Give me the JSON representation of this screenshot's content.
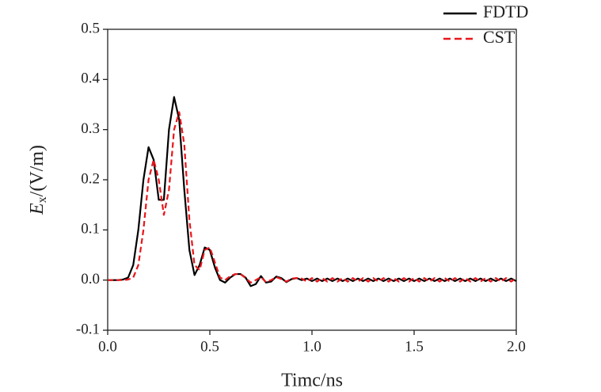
{
  "chart_data": {
    "type": "line",
    "xlabel": "Timc/ns",
    "ylabel": {
      "symbol": "E",
      "subscript": "x",
      "unit": "/(V/m)"
    },
    "xlim": [
      0,
      2
    ],
    "ylim": [
      -0.1,
      0.5
    ],
    "xticks": [
      {
        "value": 0,
        "label": "0.0"
      },
      0.5,
      {
        "value": 1,
        "label": "1.0"
      },
      1.5,
      {
        "value": 2,
        "label": "2.0"
      }
    ],
    "yticks": [
      -0.1,
      {
        "value": 0,
        "label": "0.0"
      },
      0.1,
      0.2,
      0.3,
      0.4,
      0.5
    ],
    "legend": "top-right",
    "x": [
      0,
      0.025,
      0.05,
      0.075,
      0.1,
      0.125,
      0.15,
      0.175,
      0.2,
      0.225,
      0.25,
      0.275,
      0.3,
      0.325,
      0.35,
      0.375,
      0.4,
      0.425,
      0.45,
      0.475,
      0.5,
      0.525,
      0.55,
      0.575,
      0.6,
      0.625,
      0.65,
      0.675,
      0.7,
      0.725,
      0.75,
      0.775,
      0.8,
      0.825,
      0.85,
      0.875,
      0.9,
      0.925,
      0.95,
      0.975,
      1,
      1.025,
      1.05,
      1.075,
      1.1,
      1.125,
      1.15,
      1.175,
      1.2,
      1.225,
      1.25,
      1.275,
      1.3,
      1.325,
      1.35,
      1.375,
      1.4,
      1.425,
      1.45,
      1.475,
      1.5,
      1.525,
      1.55,
      1.575,
      1.6,
      1.625,
      1.65,
      1.675,
      1.7,
      1.725,
      1.75,
      1.775,
      1.8,
      1.825,
      1.85,
      1.875,
      1.9,
      1.925,
      1.95,
      1.975,
      2
    ],
    "series": [
      {
        "name": "FDTD",
        "color": "#000000",
        "dash": "solid",
        "values": [
          0,
          0,
          0,
          0.001,
          0.005,
          0.03,
          0.1,
          0.2,
          0.265,
          0.24,
          0.16,
          0.16,
          0.3,
          0.365,
          0.32,
          0.18,
          0.06,
          0.01,
          0.03,
          0.065,
          0.06,
          0.025,
          0,
          -0.005,
          0.005,
          0.012,
          0.012,
          0.005,
          -0.012,
          -0.008,
          0.008,
          -0.005,
          -0.003,
          0.007,
          0.004,
          -0.004,
          0.002,
          0.004,
          0,
          0.003,
          -0.002,
          0.003,
          -0.002,
          0.003,
          -0.002,
          0.003,
          -0.002,
          0.003,
          -0.002,
          0.003,
          -0.002,
          0.003,
          -0.002,
          0.003,
          -0.002,
          0.003,
          -0.002,
          0.003,
          -0.002,
          0.003,
          -0.002,
          0.003,
          -0.002,
          0.003,
          -0.002,
          0.003,
          -0.002,
          0.003,
          -0.002,
          0.003,
          -0.002,
          0.003,
          -0.002,
          0.003,
          -0.002,
          0.003,
          -0.002,
          0.003,
          -0.002,
          0.003,
          -0.002
        ]
      },
      {
        "name": "CST",
        "color": "#e8161b",
        "dash": "dashed",
        "values": [
          0,
          0,
          0,
          0,
          0.001,
          0.005,
          0.03,
          0.1,
          0.2,
          0.24,
          0.2,
          0.13,
          0.18,
          0.3,
          0.335,
          0.27,
          0.12,
          0.03,
          0.02,
          0.06,
          0.065,
          0.035,
          0.005,
          0,
          0.008,
          0.012,
          0.012,
          0.004,
          -0.005,
          0,
          0.006,
          -0.004,
          0,
          0.006,
          0.002,
          -0.003,
          0.003,
          0.004,
          0.003,
          -0.003,
          0.004,
          -0.003,
          0.004,
          -0.003,
          0.004,
          -0.003,
          0.004,
          -0.003,
          0.004,
          -0.003,
          0.004,
          -0.003,
          0.004,
          -0.003,
          0.004,
          -0.003,
          0.004,
          -0.003,
          0.004,
          -0.003,
          0.004,
          -0.003,
          0.004,
          -0.003,
          0.004,
          -0.003,
          0.004,
          -0.003,
          0.004,
          -0.003,
          0.004,
          -0.003,
          0.004,
          -0.003,
          0.004,
          -0.003,
          0.004,
          -0.003,
          0.004,
          -0.003,
          0.004
        ]
      }
    ]
  }
}
